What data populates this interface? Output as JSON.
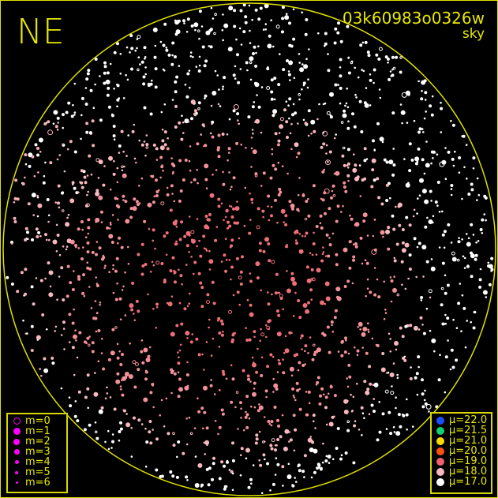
{
  "header": {
    "direction": "NE",
    "field_id": "03k60983o0326w",
    "map_type": "sky"
  },
  "magnitude_legend": {
    "symbol_color": "#ff00ff",
    "items": [
      {
        "label": "m=0",
        "style": "ring"
      },
      {
        "label": "m=1"
      },
      {
        "label": "m=2"
      },
      {
        "label": "m=3"
      },
      {
        "label": "m=4"
      },
      {
        "label": "m=5"
      },
      {
        "label": "m=6"
      }
    ]
  },
  "brightness_legend": {
    "items": [
      {
        "label": "μ=22.0",
        "color": "#1a4fff"
      },
      {
        "label": "μ=21.5",
        "color": "#10d070"
      },
      {
        "label": "μ=21.0",
        "color": "#ffd800"
      },
      {
        "label": "μ=20.0",
        "color": "#ff5010"
      },
      {
        "label": "μ=19.0",
        "color": "#f06070"
      },
      {
        "label": "μ=18.0",
        "color": "#f8b8c0"
      },
      {
        "label": "μ=17.0",
        "color": "#ffffff"
      }
    ]
  },
  "colors": {
    "frame": "#e0e000",
    "text": "#e8e800"
  }
}
